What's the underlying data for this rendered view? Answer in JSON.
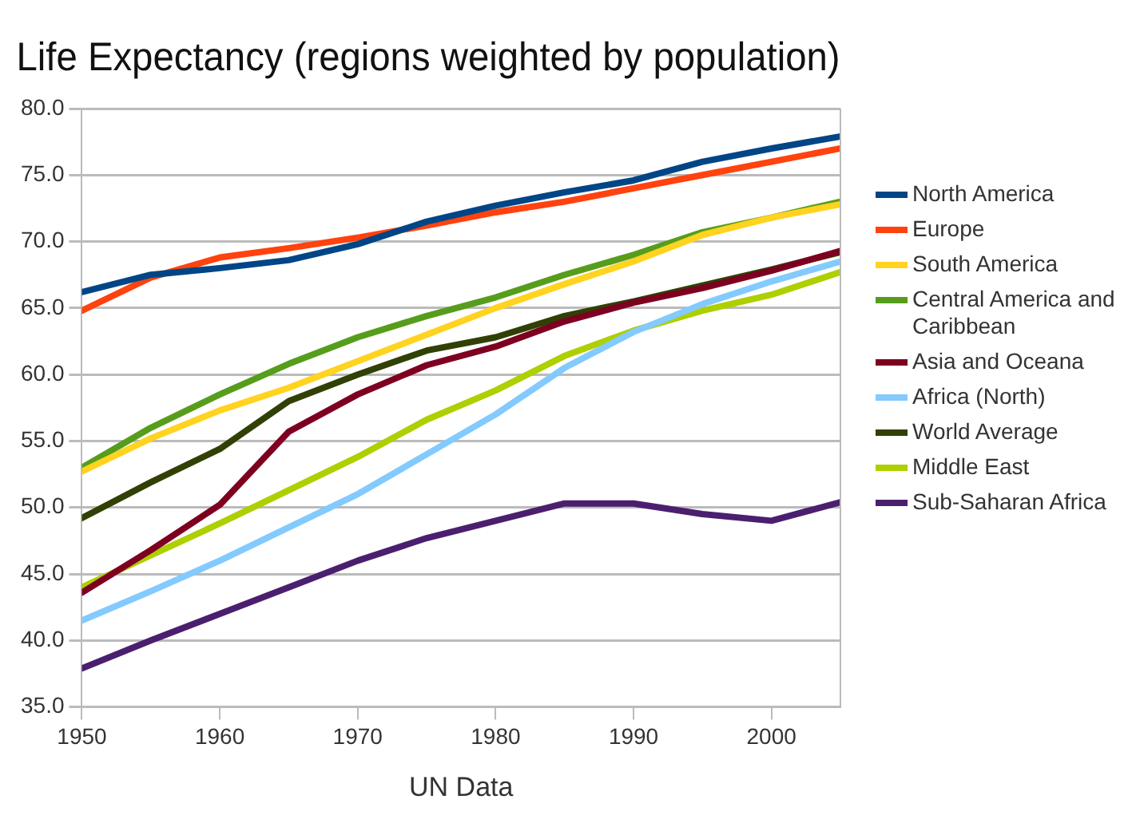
{
  "chart_data": {
    "type": "line",
    "title": "Life Expectancy (regions weighted by population)",
    "xlabel": "UN Data",
    "x": [
      1950,
      1955,
      1960,
      1965,
      1970,
      1975,
      1980,
      1985,
      1990,
      1995,
      2000,
      2005
    ],
    "xlim": [
      1950,
      2005
    ],
    "xticks": [
      1950,
      1960,
      1970,
      1980,
      1990,
      2000
    ],
    "ylim": [
      35,
      80
    ],
    "yticks": [
      {
        "value": 35,
        "label": "35.0"
      },
      {
        "value": 40,
        "label": "40.0"
      },
      {
        "value": 45,
        "label": "45.0"
      },
      {
        "value": 50,
        "label": "50.0"
      },
      {
        "value": 55,
        "label": "55.0"
      },
      {
        "value": 60,
        "label": "60.0"
      },
      {
        "value": 65,
        "label": "65.0"
      },
      {
        "value": 70,
        "label": "70.0"
      },
      {
        "value": 75,
        "label": "75.0"
      },
      {
        "value": 80,
        "label": "80.0"
      }
    ],
    "grid": "y",
    "legend": "right",
    "marker": "none",
    "line_style": "solid",
    "series": [
      {
        "name": "North America",
        "color": "#004586",
        "values": [
          66.2,
          67.5,
          68.0,
          68.6,
          69.8,
          71.5,
          72.7,
          73.7,
          74.6,
          76.0,
          77.0,
          77.9
        ]
      },
      {
        "name": "Europe",
        "color": "#ff420e",
        "values": [
          64.8,
          67.3,
          68.8,
          69.5,
          70.3,
          71.2,
          72.2,
          73.0,
          74.0,
          75.0,
          76.0,
          77.0
        ]
      },
      {
        "name": "South America",
        "color": "#ffd320",
        "values": [
          52.7,
          55.2,
          57.3,
          59.0,
          61.0,
          63.0,
          65.0,
          66.8,
          68.5,
          70.5,
          71.8,
          72.8
        ]
      },
      {
        "name": "Central America and Caribbean",
        "color": "#579d1c",
        "values": [
          53.0,
          56.0,
          58.5,
          60.8,
          62.8,
          64.4,
          65.8,
          67.5,
          69.0,
          70.7,
          71.8,
          73.0
        ]
      },
      {
        "name": "Asia and Oceana",
        "color": "#7e0021",
        "values": [
          43.6,
          46.8,
          50.2,
          55.7,
          58.5,
          60.7,
          62.1,
          64.0,
          65.4,
          66.5,
          67.8,
          69.3
        ]
      },
      {
        "name": "Africa (North)",
        "color": "#83caff",
        "values": [
          41.5,
          43.7,
          46.0,
          48.5,
          51.0,
          54.0,
          57.0,
          60.5,
          63.2,
          65.3,
          67.0,
          68.5
        ]
      },
      {
        "name": "World Average",
        "color": "#314004",
        "values": [
          49.2,
          51.9,
          54.4,
          58.0,
          60.0,
          61.8,
          62.8,
          64.4,
          65.5,
          66.7,
          67.9,
          69.2
        ]
      },
      {
        "name": "Middle East",
        "color": "#aecf00",
        "values": [
          44.0,
          46.4,
          48.8,
          51.3,
          53.8,
          56.6,
          58.8,
          61.4,
          63.3,
          64.8,
          66.0,
          67.7
        ]
      },
      {
        "name": "Sub-Saharan Africa",
        "color": "#4b1f6f",
        "values": [
          37.9,
          40.0,
          42.0,
          44.0,
          46.0,
          47.7,
          49.0,
          50.3,
          50.3,
          49.5,
          49.0,
          50.4
        ]
      }
    ]
  }
}
